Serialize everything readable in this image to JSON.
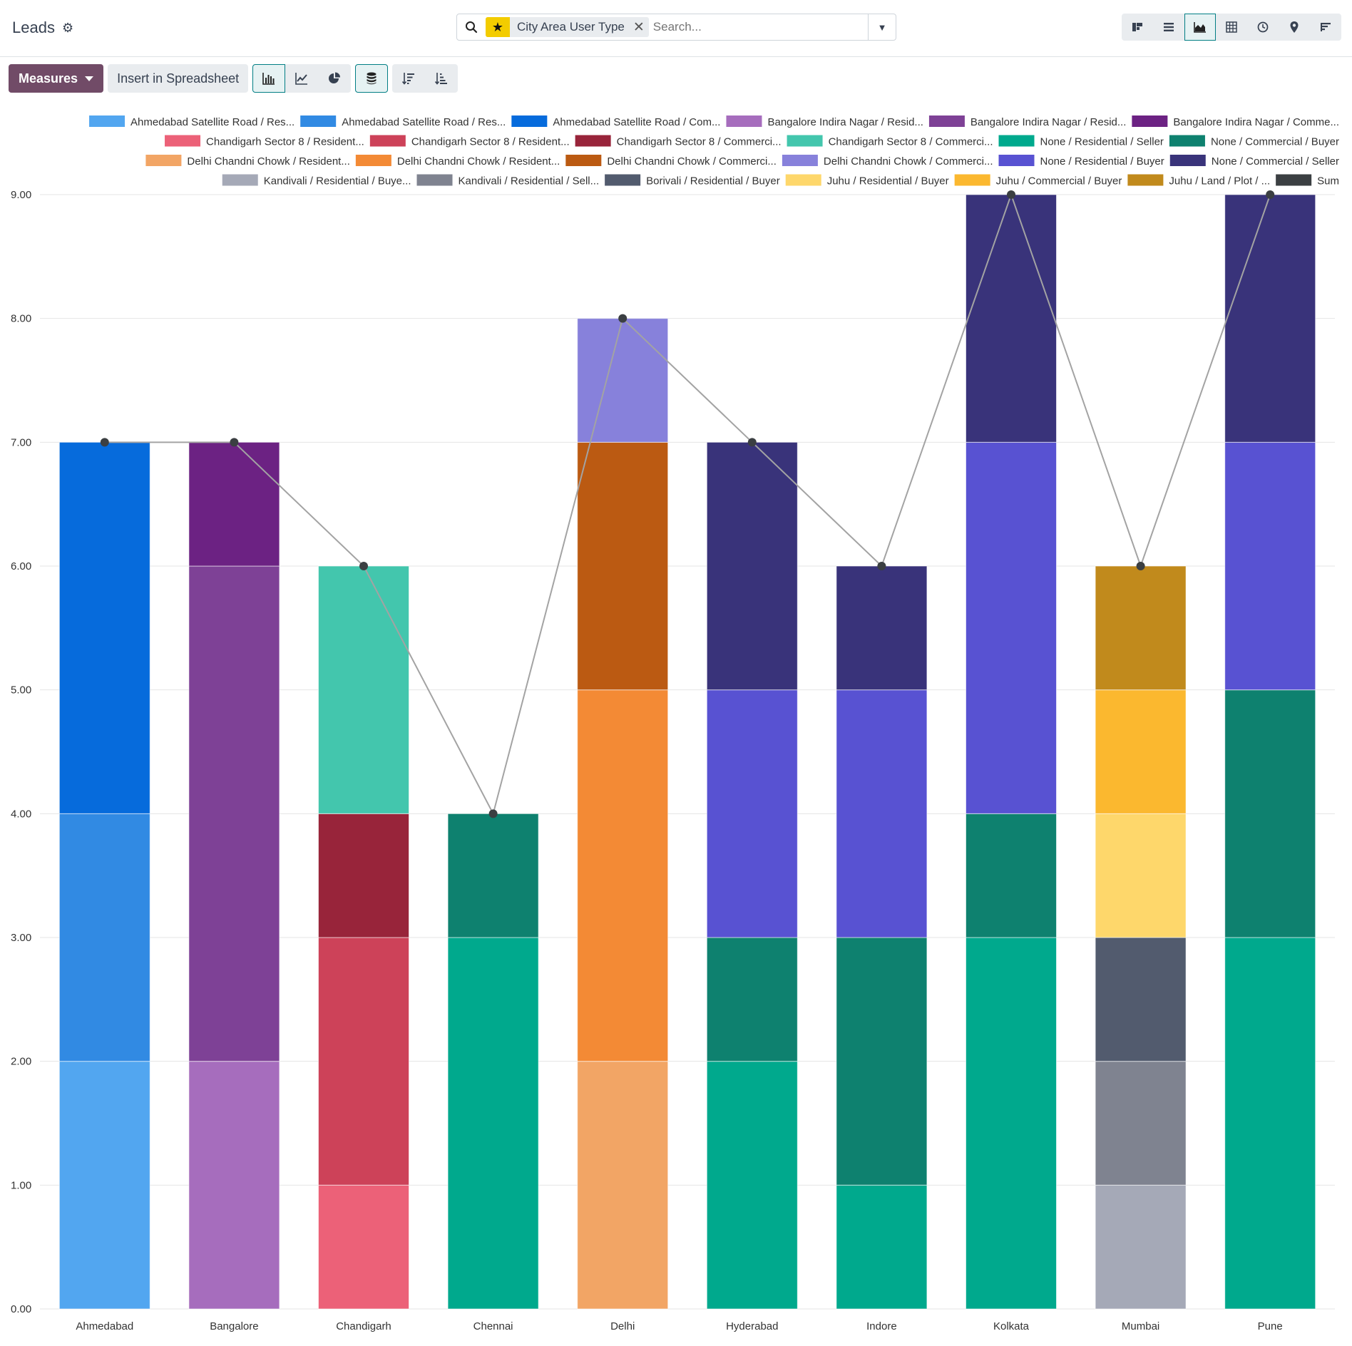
{
  "app": {
    "title": "Leads",
    "gear_icon": "gear-icon"
  },
  "search": {
    "facet_icon": "star-icon",
    "facet_label": "City Area User Type",
    "placeholder": "Search..."
  },
  "views": [
    "kanban",
    "list",
    "graph",
    "pivot",
    "activity",
    "map",
    "cohort"
  ],
  "active_view": "graph",
  "toolbar": {
    "measures_label": "Measures",
    "insert_label": "Insert in Spreadsheet",
    "chart_types": [
      "bar",
      "line",
      "pie"
    ],
    "active_chart_type": "bar",
    "stacked_active": true,
    "sort_buttons": [
      "descending",
      "ascending"
    ]
  },
  "chart_data": {
    "type": "bar",
    "stacked": true,
    "categories": [
      "Ahmedabad",
      "Bangalore",
      "Chandigarh",
      "Chennai",
      "Delhi",
      "Hyderabad",
      "Indore",
      "Kolkata",
      "Mumbai",
      "Pune"
    ],
    "ylim": [
      0,
      9
    ],
    "yticks": [
      "0.00",
      "1.00",
      "2.00",
      "3.00",
      "4.00",
      "5.00",
      "6.00",
      "7.00",
      "8.00",
      "9.00"
    ],
    "grid": true,
    "legend_position": "top",
    "series": [
      {
        "name": "Ahmedabad Satellite Road / Res...",
        "color": "#52a6f0",
        "values": [
          2,
          0,
          0,
          0,
          0,
          0,
          0,
          0,
          0,
          0
        ]
      },
      {
        "name": "Ahmedabad Satellite Road / Res...",
        "color": "#318ae3",
        "values": [
          2,
          0,
          0,
          0,
          0,
          0,
          0,
          0,
          0,
          0
        ]
      },
      {
        "name": "Ahmedabad Satellite Road / Com...",
        "color": "#066bdc",
        "values": [
          3,
          0,
          0,
          0,
          0,
          0,
          0,
          0,
          0,
          0
        ]
      },
      {
        "name": "Bangalore Indira Nagar / Resid...",
        "color": "#a66dbd",
        "values": [
          0,
          2,
          0,
          0,
          0,
          0,
          0,
          0,
          0,
          0
        ]
      },
      {
        "name": "Bangalore Indira Nagar / Resid...",
        "color": "#7e4196",
        "values": [
          0,
          4,
          0,
          0,
          0,
          0,
          0,
          0,
          0,
          0
        ]
      },
      {
        "name": "Bangalore Indira Nagar / Comme...",
        "color": "#6c2283",
        "values": [
          0,
          1,
          0,
          0,
          0,
          0,
          0,
          0,
          0,
          0
        ]
      },
      {
        "name": "Chandigarh Sector 8 / Resident...",
        "color": "#ec6178",
        "values": [
          0,
          0,
          1,
          0,
          0,
          0,
          0,
          0,
          0,
          0
        ]
      },
      {
        "name": "Chandigarh Sector 8 / Resident...",
        "color": "#cd4259",
        "values": [
          0,
          0,
          2,
          0,
          0,
          0,
          0,
          0,
          0,
          0
        ]
      },
      {
        "name": "Chandigarh Sector 8 / Commerci...",
        "color": "#98243a",
        "values": [
          0,
          0,
          1,
          0,
          0,
          0,
          0,
          0,
          0,
          0
        ]
      },
      {
        "name": "Chandigarh Sector 8 / Commerci...",
        "color": "#43c6ad",
        "values": [
          0,
          0,
          2,
          0,
          0,
          0,
          0,
          0,
          0,
          0
        ]
      },
      {
        "name": "None / Residential / Seller",
        "color": "#00a98d",
        "values": [
          0,
          0,
          0,
          3,
          0,
          2,
          1,
          3,
          0,
          3
        ]
      },
      {
        "name": "None / Commercial / Buyer",
        "color": "#0e816f",
        "values": [
          0,
          0,
          0,
          1,
          0,
          1,
          2,
          1,
          0,
          2
        ]
      },
      {
        "name": "Delhi Chandni Chowk / Resident...",
        "color": "#f2a565",
        "values": [
          0,
          0,
          0,
          0,
          2,
          0,
          0,
          0,
          0,
          0
        ]
      },
      {
        "name": "Delhi Chandni Chowk / Resident...",
        "color": "#f38a35",
        "values": [
          0,
          0,
          0,
          0,
          3,
          0,
          0,
          0,
          0,
          0
        ]
      },
      {
        "name": "Delhi Chandni Chowk / Commerci...",
        "color": "#bb5a12",
        "values": [
          0,
          0,
          0,
          0,
          2,
          0,
          0,
          0,
          0,
          0
        ]
      },
      {
        "name": "Delhi Chandni Chowk / Commerci...",
        "color": "#8781db",
        "values": [
          0,
          0,
          0,
          0,
          1,
          0,
          0,
          0,
          0,
          0
        ]
      },
      {
        "name": "None / Residential / Buyer",
        "color": "#5852d2",
        "values": [
          0,
          0,
          0,
          0,
          0,
          2,
          2,
          3,
          0,
          2
        ]
      },
      {
        "name": "None / Commercial / Seller",
        "color": "#39337a",
        "values": [
          0,
          0,
          0,
          0,
          0,
          2,
          1,
          2,
          0,
          2
        ]
      },
      {
        "name": "Kandivali / Residential / Buye...",
        "color": "#a5a9b7",
        "values": [
          0,
          0,
          0,
          0,
          0,
          0,
          0,
          0,
          1,
          0
        ]
      },
      {
        "name": "Kandivali / Residential / Sell...",
        "color": "#7f8390",
        "values": [
          0,
          0,
          0,
          0,
          0,
          0,
          0,
          0,
          1,
          0
        ]
      },
      {
        "name": "Borivali / Residential / Buyer",
        "color": "#525b6e",
        "values": [
          0,
          0,
          0,
          0,
          0,
          0,
          0,
          0,
          1,
          0
        ]
      },
      {
        "name": "Juhu / Residential / Buyer",
        "color": "#fed76b",
        "values": [
          0,
          0,
          0,
          0,
          0,
          0,
          0,
          0,
          1,
          0
        ]
      },
      {
        "name": "Juhu / Commercial / Buyer",
        "color": "#fbb82f",
        "values": [
          0,
          0,
          0,
          0,
          0,
          0,
          0,
          0,
          1,
          0
        ]
      },
      {
        "name": "Juhu / Land / Plot / ...",
        "color": "#c18a1c",
        "values": [
          0,
          0,
          0,
          0,
          0,
          0,
          0,
          0,
          1,
          0
        ]
      }
    ],
    "sum": {
      "name": "Sum",
      "color": "#3b3f42",
      "values": [
        7,
        7,
        6,
        4,
        8,
        7,
        6,
        9,
        6,
        9
      ]
    }
  }
}
